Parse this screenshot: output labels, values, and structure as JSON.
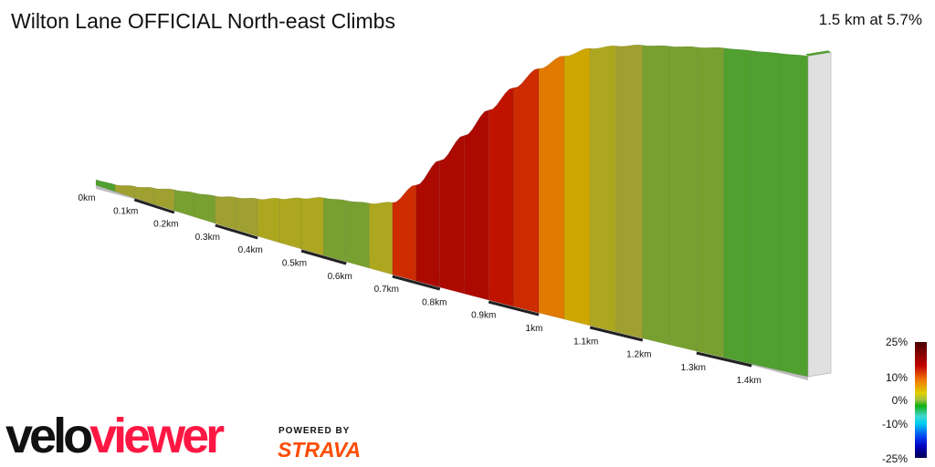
{
  "header": {
    "title": "Wilton Lane OFFICIAL North-east Climbs",
    "summary": "1.5 km at 5.7%"
  },
  "chart_data": {
    "type": "area",
    "xlabel": "",
    "ylabel": "",
    "x_unit": "km",
    "distance_km": [
      0,
      0.05,
      0.1,
      0.15,
      0.2,
      0.25,
      0.3,
      0.35,
      0.4,
      0.45,
      0.5,
      0.55,
      0.6,
      0.65,
      0.7,
      0.75,
      0.8,
      0.85,
      0.9,
      0.95,
      1.0,
      1.05,
      1.1,
      1.15,
      1.2,
      1.25,
      1.3,
      1.35,
      1.4,
      1.45,
      1.5
    ],
    "elevation_m": [
      0,
      0.5,
      2,
      3.5,
      5,
      6,
      7,
      8.5,
      10,
      12,
      14,
      16,
      17,
      18,
      20,
      27,
      36,
      45,
      54,
      62,
      69,
      74,
      77.5,
      79.5,
      81,
      82,
      83,
      84,
      84.5,
      85,
      85.5
    ],
    "tick_values": [
      0,
      0.1,
      0.2,
      0.3,
      0.4,
      0.5,
      0.6,
      0.7,
      0.8,
      0.9,
      1.0,
      1.1,
      1.2,
      1.3,
      1.4
    ],
    "tick_labels": [
      "0km",
      "0.1km",
      "0.2km",
      "0.3km",
      "0.4km",
      "0.5km",
      "0.6km",
      "0.7km",
      "0.8km",
      "0.9km",
      "1km",
      "1.1km",
      "1.2km",
      "1.3km",
      "1.4km"
    ],
    "color_scale": {
      "labels": [
        "25%",
        "10%",
        "0%",
        "-10%",
        "-25%"
      ],
      "stops": [
        [
          25,
          "#500000"
        ],
        [
          20,
          "#9a0000"
        ],
        [
          15,
          "#c81800"
        ],
        [
          10,
          "#e07a00"
        ],
        [
          6,
          "#c8b400"
        ],
        [
          3,
          "#a0a030"
        ],
        [
          1,
          "#50a030"
        ],
        [
          0,
          "#10a010"
        ],
        [
          -5,
          "#40d8d0"
        ],
        [
          -10,
          "#00d0f0"
        ],
        [
          -15,
          "#0040f0"
        ],
        [
          -25,
          "#000050"
        ]
      ]
    }
  },
  "branding": {
    "velo": "velo",
    "viewer": "viewer",
    "powered_by": "POWERED BY",
    "strava": "STRAVA"
  }
}
